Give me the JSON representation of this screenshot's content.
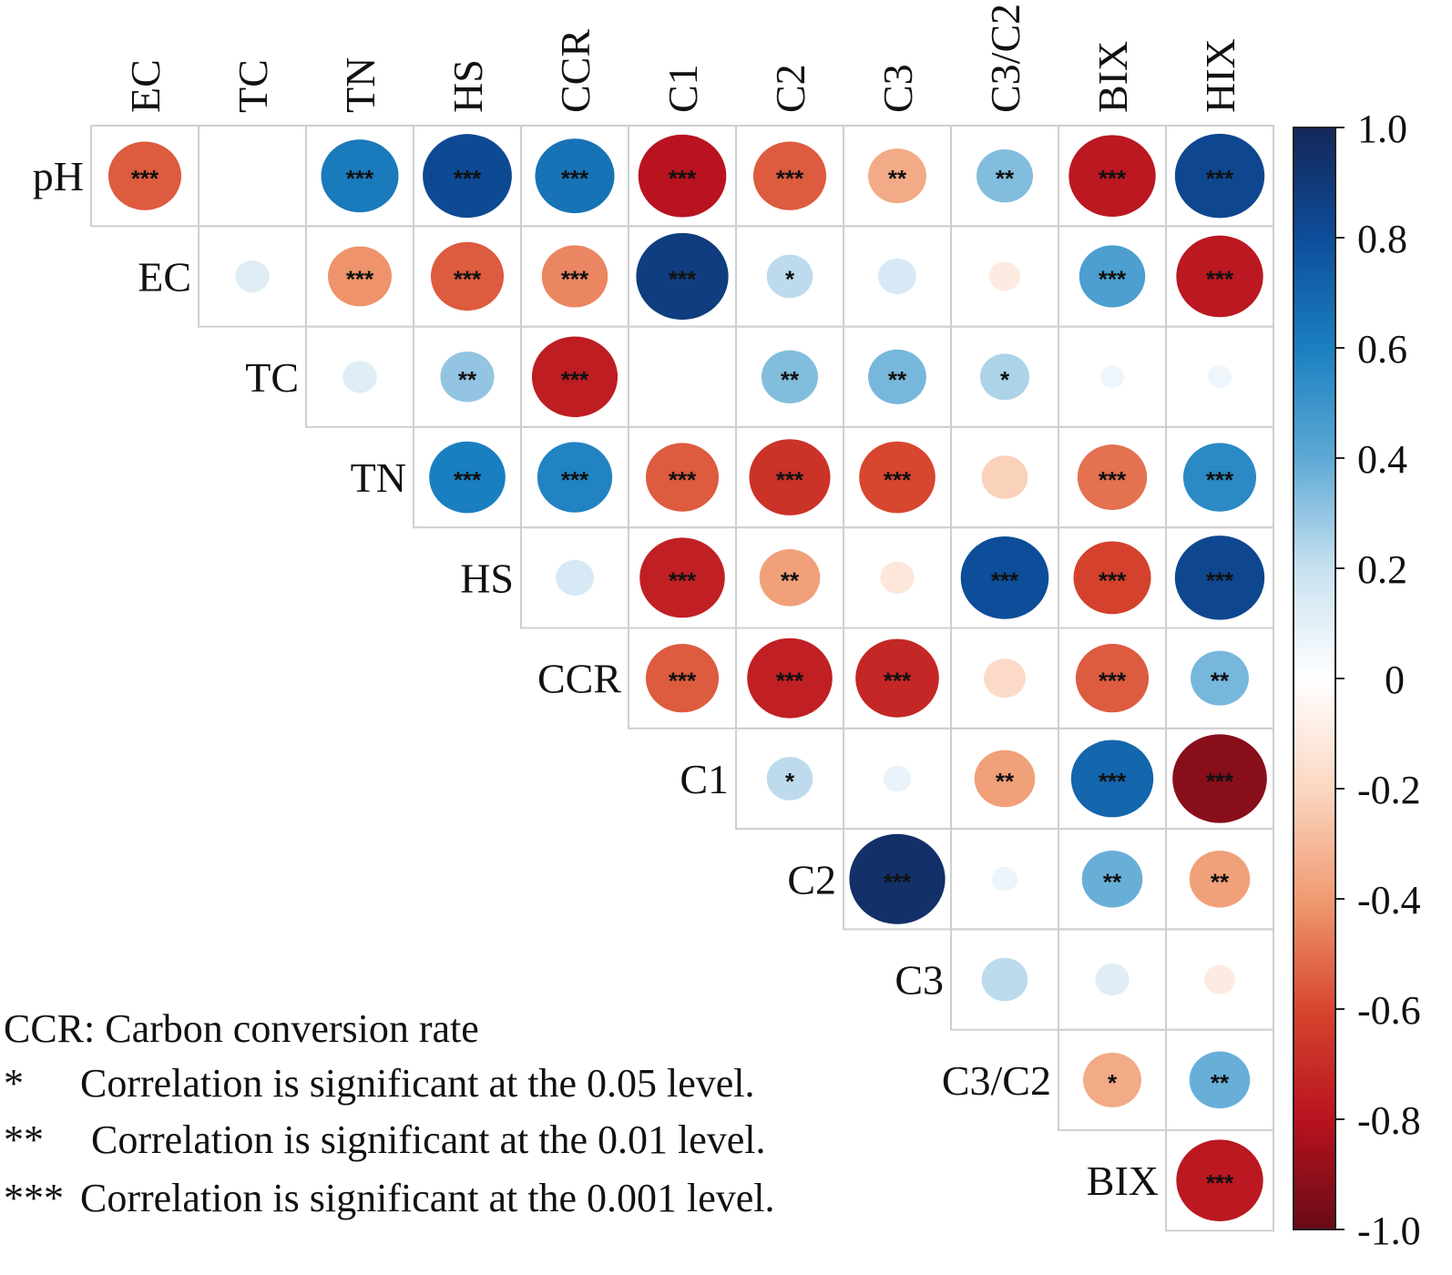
{
  "chart_data": {
    "type": "heatmap",
    "variables": [
      "pH",
      "EC",
      "TC",
      "TN",
      "HS",
      "CCR",
      "C1",
      "C2",
      "C3",
      "C3/C2",
      "BIX",
      "HIX"
    ],
    "row_labels": [
      "pH",
      "EC",
      "TC",
      "TN",
      "HS",
      "CCR",
      "C1",
      "C2",
      "C3",
      "C3/C2",
      "BIX"
    ],
    "column_labels": [
      "EC",
      "TC",
      "TN",
      "HS",
      "CCR",
      "C1",
      "C2",
      "C3",
      "C3/C2",
      "BIX",
      "HIX"
    ],
    "matrix_shape": "upper-triangle",
    "cells": [
      {
        "row": "pH",
        "col": "EC",
        "r": -0.55,
        "sig": "***"
      },
      {
        "row": "pH",
        "col": "TC",
        "r": 0.0,
        "sig": ""
      },
      {
        "row": "pH",
        "col": "TN",
        "r": 0.62,
        "sig": "***"
      },
      {
        "row": "pH",
        "col": "HS",
        "r": 0.82,
        "sig": "***"
      },
      {
        "row": "pH",
        "col": "CCR",
        "r": 0.65,
        "sig": "***"
      },
      {
        "row": "pH",
        "col": "C1",
        "r": -0.8,
        "sig": "***"
      },
      {
        "row": "pH",
        "col": "C2",
        "r": -0.55,
        "sig": "***"
      },
      {
        "row": "pH",
        "col": "C3",
        "r": -0.35,
        "sig": "**"
      },
      {
        "row": "pH",
        "col": "C3/C2",
        "r": 0.33,
        "sig": "**"
      },
      {
        "row": "pH",
        "col": "BIX",
        "r": -0.78,
        "sig": "***"
      },
      {
        "row": "pH",
        "col": "HIX",
        "r": 0.83,
        "sig": "***"
      },
      {
        "row": "EC",
        "col": "TC",
        "r": 0.12,
        "sig": ""
      },
      {
        "row": "EC",
        "col": "TN",
        "r": -0.42,
        "sig": "***"
      },
      {
        "row": "EC",
        "col": "HS",
        "r": -0.55,
        "sig": "***"
      },
      {
        "row": "EC",
        "col": "CCR",
        "r": -0.45,
        "sig": "***"
      },
      {
        "row": "EC",
        "col": "C1",
        "r": 0.88,
        "sig": "***"
      },
      {
        "row": "EC",
        "col": "C2",
        "r": 0.22,
        "sig": "*"
      },
      {
        "row": "EC",
        "col": "C3",
        "r": 0.15,
        "sig": ""
      },
      {
        "row": "EC",
        "col": "C3/C2",
        "r": -0.1,
        "sig": ""
      },
      {
        "row": "EC",
        "col": "BIX",
        "r": 0.45,
        "sig": "***"
      },
      {
        "row": "EC",
        "col": "HIX",
        "r": -0.78,
        "sig": "***"
      },
      {
        "row": "TC",
        "col": "TN",
        "r": 0.12,
        "sig": ""
      },
      {
        "row": "TC",
        "col": "HS",
        "r": 0.3,
        "sig": "**"
      },
      {
        "row": "TC",
        "col": "CCR",
        "r": -0.76,
        "sig": "***"
      },
      {
        "row": "TC",
        "col": "C1",
        "r": 0.0,
        "sig": ""
      },
      {
        "row": "TC",
        "col": "C2",
        "r": 0.33,
        "sig": "**"
      },
      {
        "row": "TC",
        "col": "C3",
        "r": 0.35,
        "sig": "**"
      },
      {
        "row": "TC",
        "col": "C3/C2",
        "r": 0.25,
        "sig": "*"
      },
      {
        "row": "TC",
        "col": "BIX",
        "r": 0.06,
        "sig": ""
      },
      {
        "row": "TC",
        "col": "HIX",
        "r": 0.06,
        "sig": ""
      },
      {
        "row": "TN",
        "col": "HS",
        "r": 0.6,
        "sig": "***"
      },
      {
        "row": "TN",
        "col": "CCR",
        "r": 0.58,
        "sig": "***"
      },
      {
        "row": "TN",
        "col": "C1",
        "r": -0.55,
        "sig": "***"
      },
      {
        "row": "TN",
        "col": "C2",
        "r": -0.68,
        "sig": "***"
      },
      {
        "row": "TN",
        "col": "C3",
        "r": -0.6,
        "sig": "***"
      },
      {
        "row": "TN",
        "col": "C3/C2",
        "r": -0.22,
        "sig": ""
      },
      {
        "row": "TN",
        "col": "BIX",
        "r": -0.5,
        "sig": "***"
      },
      {
        "row": "TN",
        "col": "HIX",
        "r": 0.55,
        "sig": "***"
      },
      {
        "row": "HS",
        "col": "CCR",
        "r": 0.15,
        "sig": ""
      },
      {
        "row": "HS",
        "col": "C1",
        "r": -0.75,
        "sig": "***"
      },
      {
        "row": "HS",
        "col": "C2",
        "r": -0.38,
        "sig": "**"
      },
      {
        "row": "HS",
        "col": "C3",
        "r": -0.12,
        "sig": ""
      },
      {
        "row": "HS",
        "col": "C3/C2",
        "r": 0.8,
        "sig": "***"
      },
      {
        "row": "HS",
        "col": "BIX",
        "r": -0.62,
        "sig": "***"
      },
      {
        "row": "HS",
        "col": "HIX",
        "r": 0.83,
        "sig": "***"
      },
      {
        "row": "CCR",
        "col": "C1",
        "r": -0.55,
        "sig": "***"
      },
      {
        "row": "CCR",
        "col": "C2",
        "r": -0.75,
        "sig": "***"
      },
      {
        "row": "CCR",
        "col": "C3",
        "r": -0.72,
        "sig": "***"
      },
      {
        "row": "CCR",
        "col": "C3/C2",
        "r": -0.18,
        "sig": ""
      },
      {
        "row": "CCR",
        "col": "BIX",
        "r": -0.55,
        "sig": "***"
      },
      {
        "row": "CCR",
        "col": "HIX",
        "r": 0.35,
        "sig": "**"
      },
      {
        "row": "C1",
        "col": "C2",
        "r": 0.22,
        "sig": "*"
      },
      {
        "row": "C1",
        "col": "C3",
        "r": 0.08,
        "sig": ""
      },
      {
        "row": "C1",
        "col": "C3/C2",
        "r": -0.38,
        "sig": "**"
      },
      {
        "row": "C1",
        "col": "BIX",
        "r": 0.7,
        "sig": "***"
      },
      {
        "row": "C1",
        "col": "HIX",
        "r": -0.92,
        "sig": "***"
      },
      {
        "row": "C2",
        "col": "C3",
        "r": 0.95,
        "sig": "***"
      },
      {
        "row": "C2",
        "col": "C3/C2",
        "r": 0.07,
        "sig": ""
      },
      {
        "row": "C2",
        "col": "BIX",
        "r": 0.38,
        "sig": "**"
      },
      {
        "row": "C2",
        "col": "HIX",
        "r": -0.38,
        "sig": "**"
      },
      {
        "row": "C3",
        "col": "C3/C2",
        "r": 0.22,
        "sig": ""
      },
      {
        "row": "C3",
        "col": "BIX",
        "r": 0.12,
        "sig": ""
      },
      {
        "row": "C3",
        "col": "HIX",
        "r": -0.1,
        "sig": ""
      },
      {
        "row": "C3/C2",
        "col": "BIX",
        "r": -0.35,
        "sig": "*"
      },
      {
        "row": "C3/C2",
        "col": "HIX",
        "r": 0.38,
        "sig": "**"
      },
      {
        "row": "BIX",
        "col": "HIX",
        "r": -0.78,
        "sig": "***"
      }
    ],
    "colorbar": {
      "range": [
        -1.0,
        1.0
      ],
      "ticks": [
        "1.0",
        "0.8",
        "0.6",
        "0.4",
        "0.2",
        "0",
        "-0.2",
        "-0.4",
        "-0.6",
        "-0.8",
        "-1.0"
      ],
      "tick_values": [
        1.0,
        0.8,
        0.6,
        0.4,
        0.2,
        0,
        -0.2,
        -0.4,
        -0.6,
        -0.8,
        -1.0
      ],
      "colors": {
        "1.0": "#152659",
        "0.8": "#0d4d99",
        "0.6": "#1a7fc0",
        "0.4": "#5da9d5",
        "0.2": "#c8e1f0",
        "0": "#ffffff",
        "-0.2": "#fbd7c2",
        "-0.4": "#f09b72",
        "-0.6": "#d7462e",
        "-0.8": "#b8131f",
        "-1.0": "#680a16"
      }
    }
  },
  "notes": {
    "ccr": "CCR: Carbon conversion rate",
    "sig1_symbol": "*",
    "sig1_text": "Correlation is significant at the 0.05 level.",
    "sig2_symbol": "**",
    "sig2_text": "Correlation is significant at the 0.01 level.",
    "sig3_symbol": "***",
    "sig3_text": "Correlation is significant at the 0.001 level."
  }
}
